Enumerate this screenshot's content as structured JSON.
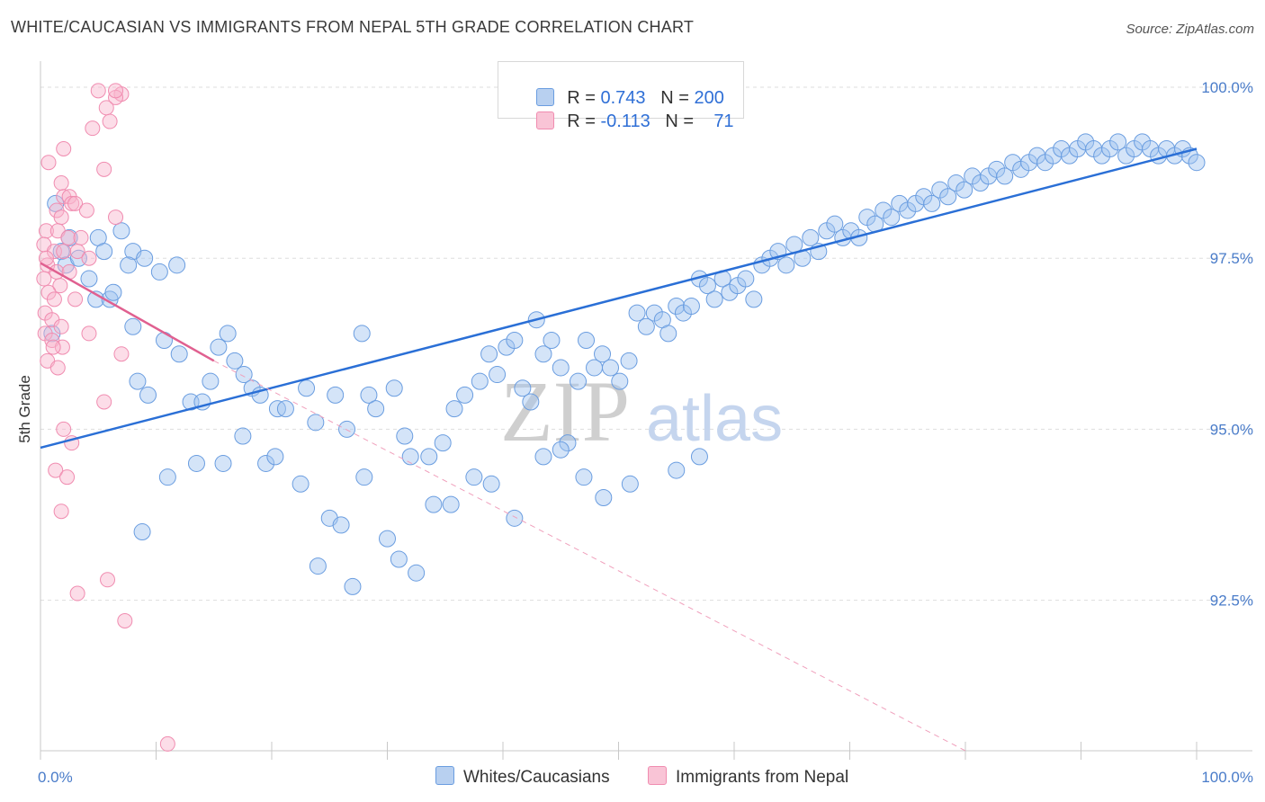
{
  "title": "WHITE/CAUCASIAN VS IMMIGRANTS FROM NEPAL 5TH GRADE CORRELATION CHART",
  "source": "Source: ZipAtlas.com",
  "watermark": {
    "zip": "ZIP",
    "atlas": "atlas"
  },
  "legend": {
    "r_label": "R =",
    "n_label": "N =",
    "series": [
      {
        "r": "0.743",
        "n": "200"
      },
      {
        "r": "-0.113",
        "n": "71"
      }
    ]
  },
  "bottom_legend": [
    "Whites/Caucasians",
    "Immigrants from Nepal"
  ],
  "chart_data": {
    "type": "scatter",
    "title": "WHITE/CAUCASIAN VS IMMIGRANTS FROM NEPAL 5TH GRADE CORRELATION CHART",
    "xlabel": "",
    "ylabel": "5th Grade",
    "xlim": [
      0,
      100
    ],
    "ylim": [
      90.3,
      100.25
    ],
    "x_tick_labels": [
      "0.0%",
      "100.0%"
    ],
    "y_ticks": [
      92.5,
      95.0,
      97.5,
      100.0
    ],
    "y_tick_labels": [
      "92.5%",
      "95.0%",
      "97.5%",
      "100.0%"
    ],
    "colors": {
      "blue": "#6a9de0",
      "blue_line": "#2a6fd6",
      "pink": "#f08cb0",
      "pink_line": "#e06090"
    },
    "series": [
      {
        "name": "Whites/Caucasians",
        "r": 0.743,
        "n": 200,
        "trend": {
          "x": [
            0,
            100
          ],
          "y": [
            94.73,
            99.1
          ]
        },
        "points": [
          [
            1,
            96.4
          ],
          [
            1.3,
            98.3
          ],
          [
            1.8,
            97.6
          ],
          [
            2.2,
            97.4
          ],
          [
            2.5,
            97.8
          ],
          [
            3.3,
            97.5
          ],
          [
            4.2,
            97.2
          ],
          [
            5,
            97.8
          ],
          [
            5.5,
            97.6
          ],
          [
            4.8,
            96.9
          ],
          [
            8,
            97.6
          ],
          [
            7.6,
            97.4
          ],
          [
            7,
            97.9
          ],
          [
            6,
            96.9
          ],
          [
            11.8,
            97.4
          ],
          [
            9,
            97.5
          ],
          [
            6.3,
            97.0
          ],
          [
            10.3,
            97.3
          ],
          [
            8,
            96.5
          ],
          [
            10.7,
            96.3
          ],
          [
            9.3,
            95.5
          ],
          [
            8.4,
            95.7
          ],
          [
            12,
            96.1
          ],
          [
            13,
            95.4
          ],
          [
            14,
            95.4
          ],
          [
            14.7,
            95.7
          ],
          [
            15.4,
            96.2
          ],
          [
            16.2,
            96.4
          ],
          [
            16.8,
            96.0
          ],
          [
            17.6,
            95.8
          ],
          [
            18.3,
            95.6
          ],
          [
            19,
            95.5
          ],
          [
            20.5,
            95.3
          ],
          [
            21.2,
            95.3
          ],
          [
            23,
            95.6
          ],
          [
            23.8,
            95.1
          ],
          [
            25.5,
            95.5
          ],
          [
            26.5,
            95.0
          ],
          [
            27.8,
            96.4
          ],
          [
            28.4,
            95.5
          ],
          [
            29,
            95.3
          ],
          [
            30.6,
            95.6
          ],
          [
            31.5,
            94.9
          ],
          [
            32,
            94.6
          ],
          [
            33.6,
            94.6
          ],
          [
            34.8,
            94.8
          ],
          [
            35.8,
            95.3
          ],
          [
            36.7,
            95.5
          ],
          [
            38,
            95.7
          ],
          [
            38.8,
            96.1
          ],
          [
            39.5,
            95.8
          ],
          [
            40.3,
            96.2
          ],
          [
            41,
            96.3
          ],
          [
            41.7,
            95.6
          ],
          [
            42.4,
            95.4
          ],
          [
            42.9,
            96.6
          ],
          [
            43.5,
            96.1
          ],
          [
            44.2,
            96.3
          ],
          [
            45,
            95.9
          ],
          [
            45.6,
            94.8
          ],
          [
            46.5,
            95.7
          ],
          [
            47.2,
            96.3
          ],
          [
            47.9,
            95.9
          ],
          [
            48.6,
            96.1
          ],
          [
            49.3,
            95.9
          ],
          [
            50.1,
            95.7
          ],
          [
            50.9,
            96.0
          ],
          [
            51.6,
            96.7
          ],
          [
            52.4,
            96.5
          ],
          [
            53.1,
            96.7
          ],
          [
            53.8,
            96.6
          ],
          [
            54.3,
            96.4
          ],
          [
            55,
            96.8
          ],
          [
            55.6,
            96.7
          ],
          [
            56.3,
            96.8
          ],
          [
            57,
            97.2
          ],
          [
            57.7,
            97.1
          ],
          [
            58.3,
            96.9
          ],
          [
            59,
            97.2
          ],
          [
            59.6,
            97.0
          ],
          [
            60.3,
            97.1
          ],
          [
            61,
            97.2
          ],
          [
            61.7,
            96.9
          ],
          [
            62.4,
            97.4
          ],
          [
            63.1,
            97.5
          ],
          [
            63.8,
            97.6
          ],
          [
            64.5,
            97.4
          ],
          [
            65.2,
            97.7
          ],
          [
            65.9,
            97.5
          ],
          [
            66.6,
            97.8
          ],
          [
            67.3,
            97.6
          ],
          [
            68,
            97.9
          ],
          [
            68.7,
            98.0
          ],
          [
            69.4,
            97.8
          ],
          [
            70.1,
            97.9
          ],
          [
            70.8,
            97.8
          ],
          [
            71.5,
            98.1
          ],
          [
            72.2,
            98.0
          ],
          [
            72.9,
            98.2
          ],
          [
            73.6,
            98.1
          ],
          [
            74.3,
            98.3
          ],
          [
            75,
            98.2
          ],
          [
            75.7,
            98.3
          ],
          [
            76.4,
            98.4
          ],
          [
            77.1,
            98.3
          ],
          [
            77.8,
            98.5
          ],
          [
            78.5,
            98.4
          ],
          [
            79.2,
            98.6
          ],
          [
            79.9,
            98.5
          ],
          [
            80.6,
            98.7
          ],
          [
            81.3,
            98.6
          ],
          [
            82,
            98.7
          ],
          [
            82.7,
            98.8
          ],
          [
            83.4,
            98.7
          ],
          [
            84.1,
            98.9
          ],
          [
            84.8,
            98.8
          ],
          [
            85.5,
            98.9
          ],
          [
            86.2,
            99.0
          ],
          [
            86.9,
            98.9
          ],
          [
            87.6,
            99.0
          ],
          [
            88.3,
            99.1
          ],
          [
            89,
            99.0
          ],
          [
            89.7,
            99.1
          ],
          [
            90.4,
            99.2
          ],
          [
            91.1,
            99.1
          ],
          [
            91.8,
            99.0
          ],
          [
            92.5,
            99.1
          ],
          [
            93.2,
            99.2
          ],
          [
            93.9,
            99.0
          ],
          [
            94.6,
            99.1
          ],
          [
            95.3,
            99.2
          ],
          [
            96,
            99.1
          ],
          [
            96.7,
            99.0
          ],
          [
            97.4,
            99.1
          ],
          [
            98.1,
            99.0
          ],
          [
            98.8,
            99.1
          ],
          [
            99.4,
            99.0
          ],
          [
            100,
            98.9
          ],
          [
            8.8,
            93.5
          ],
          [
            11,
            94.3
          ],
          [
            13.5,
            94.5
          ],
          [
            15.8,
            94.5
          ],
          [
            17.5,
            94.9
          ],
          [
            19.5,
            94.5
          ],
          [
            20.3,
            94.6
          ],
          [
            22.5,
            94.2
          ],
          [
            25,
            93.7
          ],
          [
            26,
            93.6
          ],
          [
            28,
            94.3
          ],
          [
            30,
            93.4
          ],
          [
            31,
            93.1
          ],
          [
            32.5,
            92.9
          ],
          [
            34,
            93.9
          ],
          [
            35.5,
            93.9
          ],
          [
            37.5,
            94.3
          ],
          [
            39,
            94.2
          ],
          [
            41,
            93.7
          ],
          [
            43.5,
            94.6
          ],
          [
            45,
            94.7
          ],
          [
            47,
            94.3
          ],
          [
            48.7,
            94.0
          ],
          [
            51,
            94.2
          ],
          [
            24,
            93.0
          ],
          [
            27,
            92.7
          ],
          [
            55,
            94.4
          ],
          [
            57,
            94.6
          ]
        ]
      },
      {
        "name": "Immigrants from Nepal",
        "r": -0.113,
        "n": 71,
        "trend": {
          "x": [
            0,
            15
          ],
          "y": [
            97.43,
            96.0
          ]
        },
        "trend_dashed": {
          "x": [
            15,
            80
          ],
          "y": [
            96.0,
            90.3
          ]
        },
        "points": [
          [
            7,
            99.9
          ],
          [
            6.5,
            99.85
          ],
          [
            6,
            99.5
          ],
          [
            5.7,
            99.7
          ],
          [
            4.5,
            99.4
          ],
          [
            2,
            99.1
          ],
          [
            5.5,
            98.8
          ],
          [
            1.8,
            98.6
          ],
          [
            2,
            98.4
          ],
          [
            2.5,
            98.4
          ],
          [
            2.7,
            98.3
          ],
          [
            1.4,
            98.2
          ],
          [
            1.8,
            98.1
          ],
          [
            3,
            98.3
          ],
          [
            4,
            98.2
          ],
          [
            0.5,
            97.9
          ],
          [
            1.5,
            97.9
          ],
          [
            2.4,
            97.8
          ],
          [
            3.5,
            97.8
          ],
          [
            6.5,
            98.1
          ],
          [
            0.3,
            97.7
          ],
          [
            1.2,
            97.6
          ],
          [
            2,
            97.6
          ],
          [
            3.2,
            97.6
          ],
          [
            4.2,
            97.5
          ],
          [
            0.6,
            97.4
          ],
          [
            1.4,
            97.3
          ],
          [
            2.5,
            97.3
          ],
          [
            0.3,
            97.2
          ],
          [
            1.7,
            97.1
          ],
          [
            0.7,
            97.0
          ],
          [
            1.2,
            96.9
          ],
          [
            3,
            96.9
          ],
          [
            0.4,
            96.7
          ],
          [
            1,
            96.6
          ],
          [
            1.8,
            96.5
          ],
          [
            0.4,
            96.4
          ],
          [
            1,
            96.3
          ],
          [
            1.9,
            96.2
          ],
          [
            0.6,
            96.0
          ],
          [
            1.5,
            95.9
          ],
          [
            7,
            96.1
          ],
          [
            4.2,
            96.4
          ],
          [
            5.5,
            95.4
          ],
          [
            2,
            95.0
          ],
          [
            2.7,
            94.8
          ],
          [
            1.3,
            94.4
          ],
          [
            2.3,
            94.3
          ],
          [
            1.8,
            93.8
          ],
          [
            5.8,
            92.8
          ],
          [
            3.2,
            92.6
          ],
          [
            7.3,
            92.2
          ],
          [
            11,
            90.4
          ],
          [
            0.7,
            98.9
          ],
          [
            5,
            99.95
          ],
          [
            6.5,
            99.95
          ],
          [
            0.5,
            97.5
          ],
          [
            1.1,
            96.2
          ]
        ]
      }
    ]
  }
}
